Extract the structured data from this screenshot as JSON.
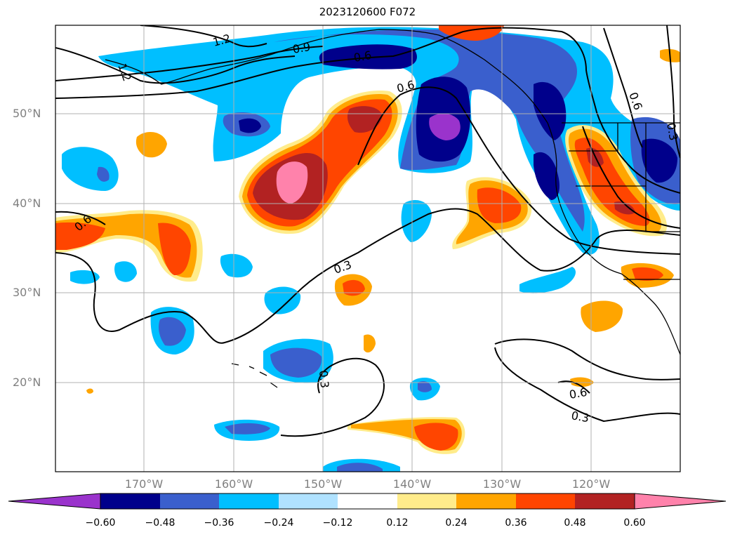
{
  "title": "2023120600 F072",
  "lat_labels": [
    "50°N",
    "40°N",
    "30°N",
    "20°N"
  ],
  "lon_labels": [
    "170°W",
    "160°W",
    "150°W",
    "140°W",
    "130°W",
    "120°W"
  ],
  "contour_labels": [
    "1.2",
    "0.9",
    "0.6",
    "0.6",
    "0.6",
    "0.3",
    "0.6",
    "0.3",
    "0.3",
    "0.6",
    "0.3",
    "1.2"
  ],
  "colorbar": {
    "tick_labels": [
      "−0.60",
      "−0.48",
      "−0.36",
      "−0.24",
      "−0.12",
      "0.12",
      "0.24",
      "0.36",
      "0.48",
      "0.60"
    ],
    "colors": [
      "#9a33cc",
      "#00008b",
      "#3a5fcd",
      "#00bfff",
      "#b0e2ff",
      "#ffffff",
      "#ffec8b",
      "#ffa500",
      "#ff4500",
      "#b22222",
      "#ff82ab"
    ]
  }
}
